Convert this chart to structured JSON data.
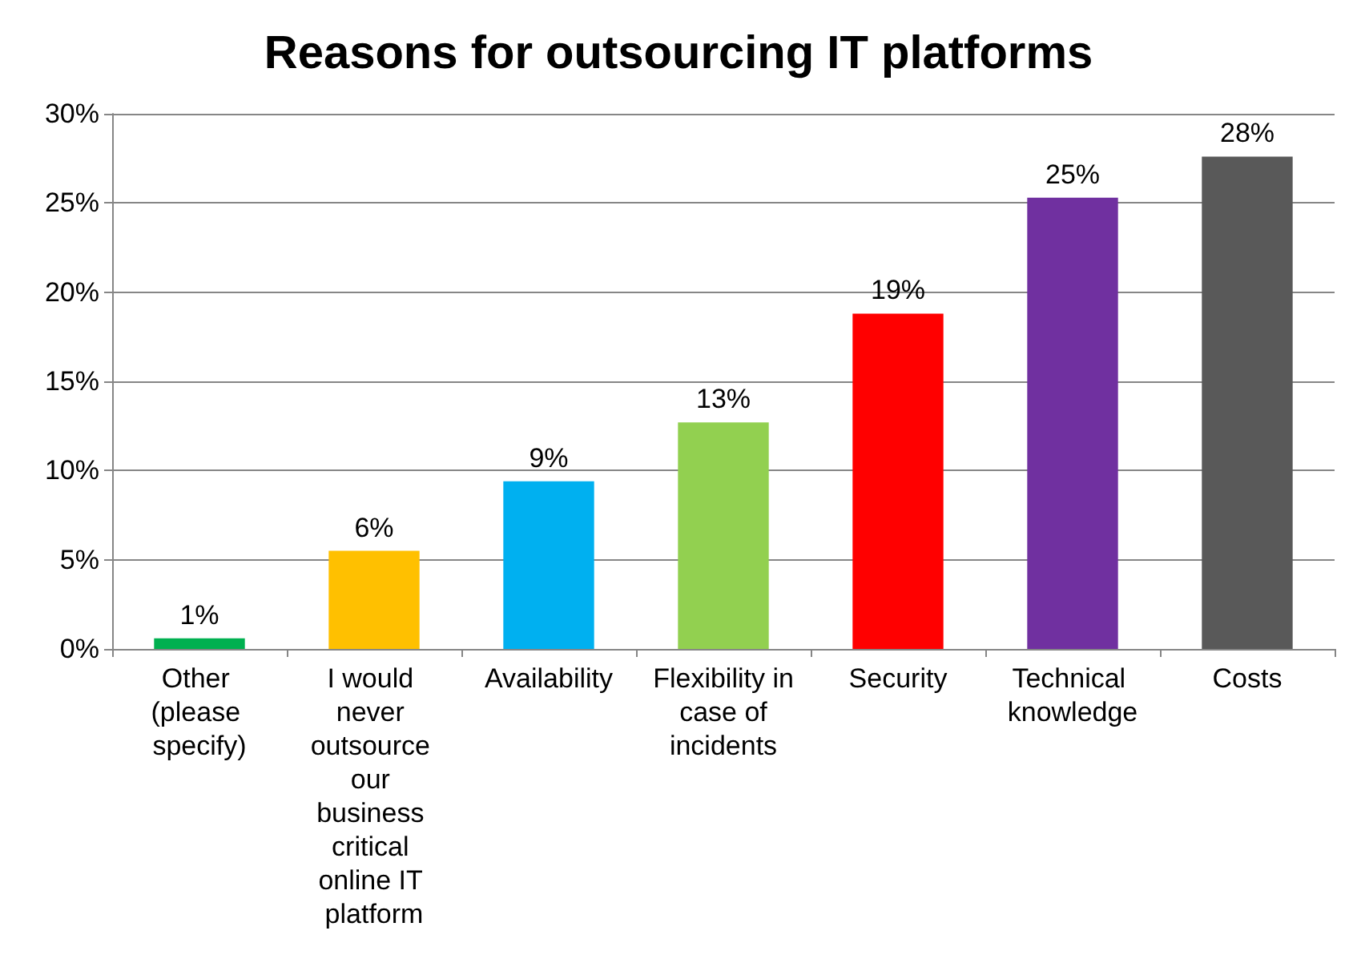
{
  "chart_data": {
    "type": "bar",
    "title": "Reasons for outsourcing IT platforms",
    "categories": [
      "Other (please specify)",
      "I would never outsource our business critical online IT platform",
      "Availability",
      "Flexibility in case of incidents",
      "Security",
      "Technical knowledge",
      "Costs"
    ],
    "values": [
      0.6,
      5.5,
      9.4,
      12.7,
      18.8,
      25.3,
      27.6
    ],
    "colors": [
      "#00b050",
      "#ffc000",
      "#00b0f0",
      "#92d050",
      "#ff0000",
      "#7030a0",
      "#595959"
    ],
    "value_labels": [
      "1%",
      "6%",
      "9%",
      "13%",
      "19%",
      "25%",
      "28%"
    ],
    "ylim": [
      0,
      30
    ],
    "yticks": [
      {
        "value": 0,
        "label": "0%"
      },
      {
        "value": 5,
        "label": "5%"
      },
      {
        "value": 10,
        "label": "10%"
      },
      {
        "value": 15,
        "label": "15%"
      },
      {
        "value": 20,
        "label": "20%"
      },
      {
        "value": 25,
        "label": "25%"
      },
      {
        "value": 30,
        "label": "30%"
      }
    ],
    "grid": "y"
  }
}
